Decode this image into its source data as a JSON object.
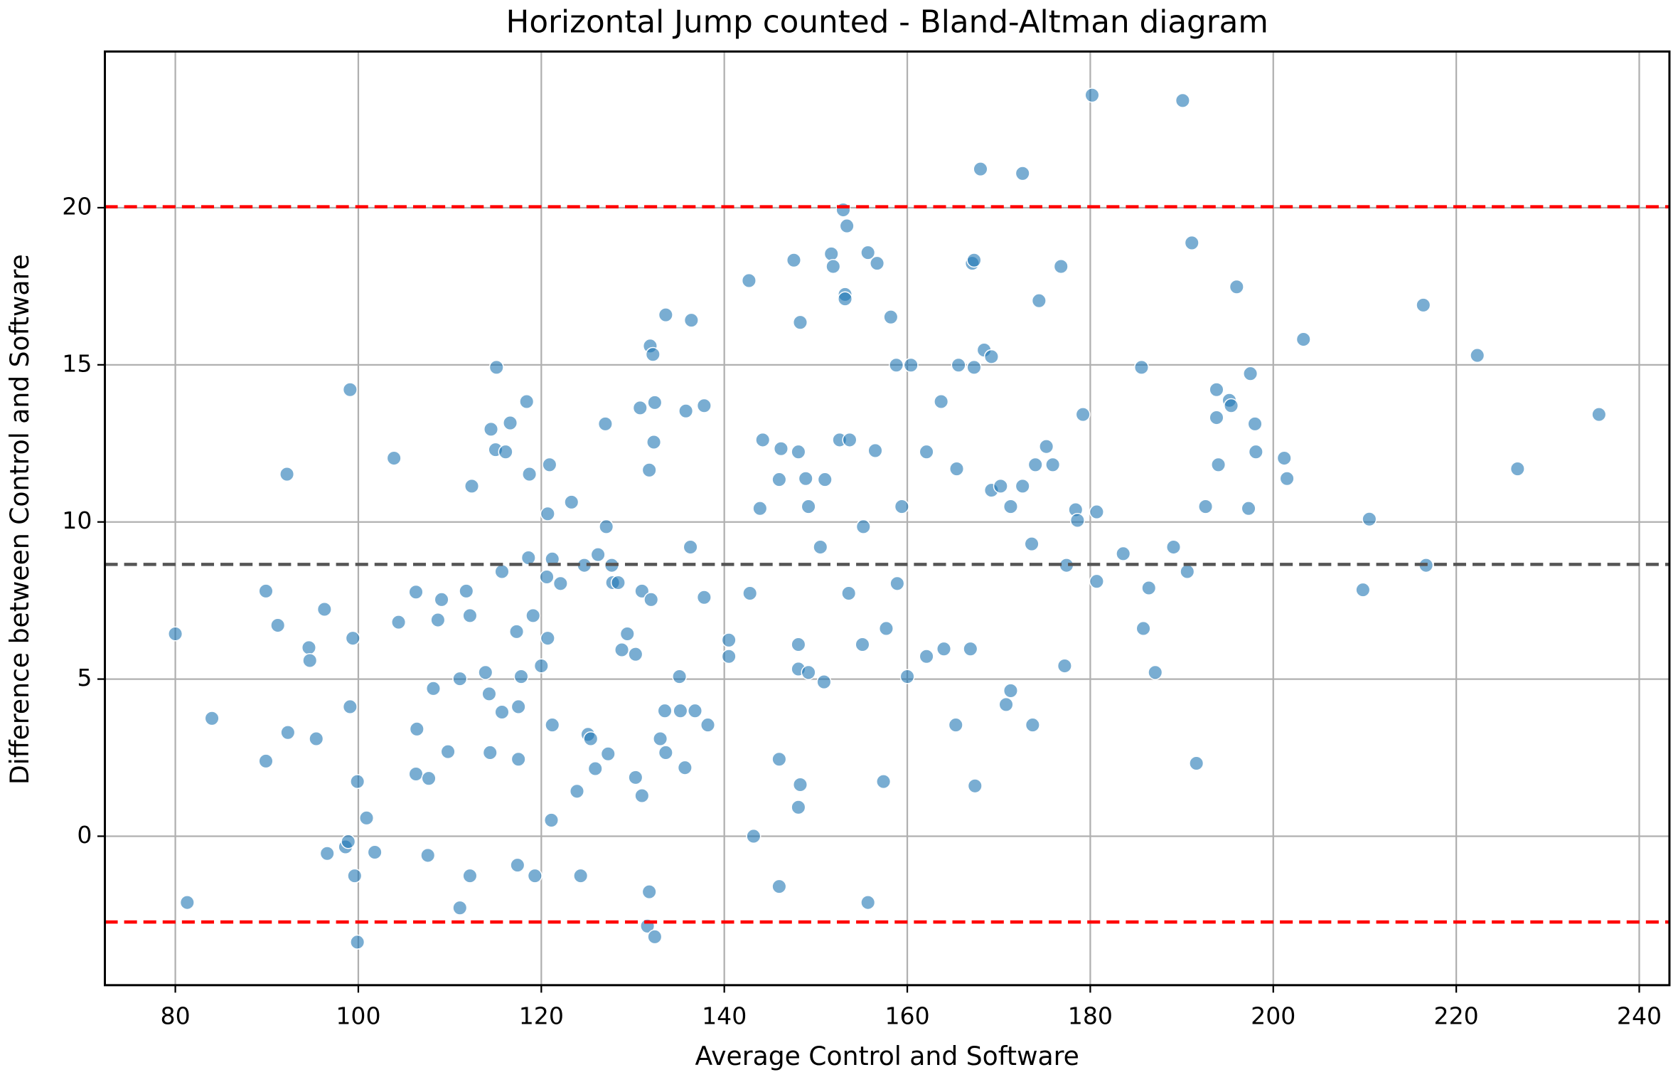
{
  "chart_data": {
    "type": "scatter",
    "title": "Horizontal Jump counted - Bland-Altman diagram",
    "xlabel": "Average Control and Software",
    "ylabel": "Difference between Control and Software",
    "x": [
      80.0,
      81.3,
      84.0,
      89.9,
      89.9,
      91.2,
      92.2,
      92.3,
      94.6,
      94.7,
      95.4,
      96.3,
      96.6,
      98.6,
      98.9,
      99.1,
      99.1,
      99.4,
      99.6,
      99.9,
      99.9,
      100.9,
      101.8,
      103.9,
      104.4,
      106.3,
      106.4,
      106.3,
      107.6,
      107.7,
      108.2,
      108.7,
      109.1,
      109.8,
      111.1,
      111.1,
      111.8,
      112.2,
      112.2,
      112.4,
      113.9,
      114.3,
      114.4,
      114.5,
      115.0,
      115.1,
      115.7,
      115.7,
      116.1,
      116.6,
      117.3,
      117.4,
      117.5,
      117.5,
      117.8,
      118.4,
      118.6,
      118.7,
      119.1,
      119.3,
      120.0,
      120.6,
      120.7,
      120.7,
      120.9,
      121.2,
      121.2,
      121.1,
      122.1,
      123.3,
      123.9,
      124.3,
      124.7,
      125.1,
      125.4,
      125.9,
      126.2,
      127.0,
      127.1,
      127.3,
      127.7,
      127.8,
      128.4,
      128.8,
      129.4,
      130.3,
      130.3,
      130.8,
      131.0,
      131.0,
      131.6,
      131.8,
      131.8,
      132.0,
      131.9,
      132.2,
      132.3,
      132.4,
      132.4,
      133.0,
      133.5,
      133.6,
      133.6,
      135.1,
      135.2,
      135.7,
      135.8,
      136.4,
      136.3,
      136.8,
      137.8,
      137.8,
      138.2,
      140.5,
      140.5,
      142.7,
      142.8,
      143.2,
      143.9,
      144.2,
      146.0,
      146.0,
      146.0,
      146.2,
      147.6,
      148.1,
      148.1,
      148.1,
      148.1,
      148.3,
      148.3,
      148.9,
      149.2,
      149.2,
      150.5,
      150.9,
      151.0,
      151.7,
      151.9,
      152.6,
      153.0,
      153.2,
      153.2,
      153.4,
      153.6,
      153.7,
      155.1,
      155.2,
      155.7,
      155.7,
      156.5,
      156.7,
      157.4,
      157.7,
      158.2,
      158.8,
      158.9,
      159.4,
      160.0,
      160.4,
      162.1,
      162.1,
      163.7,
      164.0,
      165.3,
      165.4,
      165.6,
      166.9,
      167.1,
      167.3,
      167.3,
      167.4,
      168.0,
      168.4,
      169.2,
      169.2,
      170.2,
      170.8,
      171.3,
      171.3,
      172.6,
      172.6,
      173.6,
      173.7,
      174.0,
      174.4,
      175.2,
      175.9,
      176.8,
      177.2,
      177.4,
      178.4,
      178.6,
      179.2,
      180.2,
      180.7,
      180.7,
      183.6,
      185.6,
      185.8,
      186.4,
      187.1,
      189.1,
      190.1,
      190.6,
      191.1,
      191.6,
      192.6,
      193.8,
      193.8,
      194.0,
      195.2,
      195.4,
      196.0,
      197.3,
      197.5,
      198.0,
      198.1,
      201.2,
      201.5,
      203.3,
      209.8,
      210.5,
      216.4,
      216.7,
      222.3,
      226.7,
      235.6
    ],
    "values": [
      6.44,
      -2.11,
      3.75,
      7.8,
      2.39,
      6.71,
      11.52,
      3.3,
      6.0,
      5.59,
      3.1,
      7.22,
      -0.55,
      -0.34,
      -0.17,
      14.21,
      4.12,
      6.3,
      -1.26,
      1.74,
      -3.37,
      0.58,
      -0.51,
      12.03,
      6.81,
      7.77,
      3.41,
      1.98,
      -0.61,
      1.84,
      4.7,
      6.88,
      7.53,
      2.69,
      5.01,
      -2.28,
      7.8,
      -1.26,
      7.02,
      11.14,
      5.21,
      4.53,
      2.66,
      12.95,
      12.3,
      14.92,
      8.42,
      3.95,
      12.23,
      13.15,
      6.51,
      -0.92,
      4.12,
      2.45,
      5.08,
      13.83,
      8.86,
      11.52,
      7.02,
      -1.26,
      5.42,
      8.25,
      10.26,
      6.3,
      11.82,
      8.82,
      3.54,
      0.51,
      8.04,
      10.63,
      1.43,
      -1.26,
      8.62,
      3.24,
      3.1,
      2.15,
      8.96,
      13.12,
      9.85,
      2.62,
      8.62,
      8.07,
      8.07,
      5.93,
      6.44,
      1.87,
      5.79,
      13.63,
      7.8,
      1.29,
      -2.86,
      -1.77,
      11.65,
      7.53,
      15.6,
      15.33,
      12.54,
      13.8,
      -3.2,
      3.1,
      3.99,
      2.66,
      16.59,
      5.08,
      3.99,
      2.18,
      13.53,
      16.42,
      9.2,
      3.99,
      13.7,
      7.6,
      3.54,
      6.24,
      5.72,
      17.68,
      7.73,
      0.0,
      10.43,
      12.61,
      -1.6,
      2.45,
      11.35,
      12.33,
      18.33,
      6.1,
      5.32,
      0.92,
      12.23,
      1.64,
      16.35,
      11.38,
      5.21,
      10.49,
      9.2,
      4.91,
      11.35,
      18.53,
      18.13,
      12.61,
      19.93,
      17.24,
      17.1,
      19.42,
      7.73,
      12.61,
      6.1,
      9.85,
      -2.11,
      18.57,
      12.27,
      18.23,
      1.74,
      6.61,
      16.52,
      14.99,
      8.04,
      10.49,
      5.08,
      14.99,
      5.72,
      12.23,
      13.83,
      5.96,
      3.54,
      11.69,
      14.99,
      5.96,
      18.23,
      18.33,
      14.92,
      1.6,
      21.23,
      15.47,
      11.01,
      15.26,
      11.14,
      4.19,
      4.63,
      10.49,
      21.09,
      11.14,
      9.3,
      3.54,
      11.82,
      17.04,
      12.4,
      11.82,
      18.13,
      5.42,
      8.62,
      10.39,
      10.05,
      13.42,
      23.58,
      10.32,
      8.11,
      8.99,
      14.92,
      6.61,
      7.9,
      5.21,
      9.2,
      23.41,
      8.42,
      18.88,
      2.32,
      10.49,
      14.21,
      13.32,
      11.82,
      13.87,
      13.7,
      17.48,
      10.43,
      14.72,
      13.12,
      12.23,
      12.03,
      11.38,
      15.81,
      7.84,
      10.09,
      16.9,
      8.62,
      15.3,
      11.69,
      13.42
    ],
    "color": "#1f77b4",
    "hlines": [
      {
        "value": 20.03,
        "color": "#ff0000"
      },
      {
        "value": 8.65,
        "color": "#555555"
      },
      {
        "value": -2.73,
        "color": "#ff0000"
      }
    ],
    "xlim": [
      72.3,
      243.3
    ],
    "ylim": [
      -4.74,
      24.97
    ],
    "xticks": [
      80,
      100,
      120,
      140,
      160,
      180,
      200,
      220,
      240
    ],
    "yticks": [
      0,
      5,
      10,
      15,
      20
    ],
    "grid": true
  }
}
